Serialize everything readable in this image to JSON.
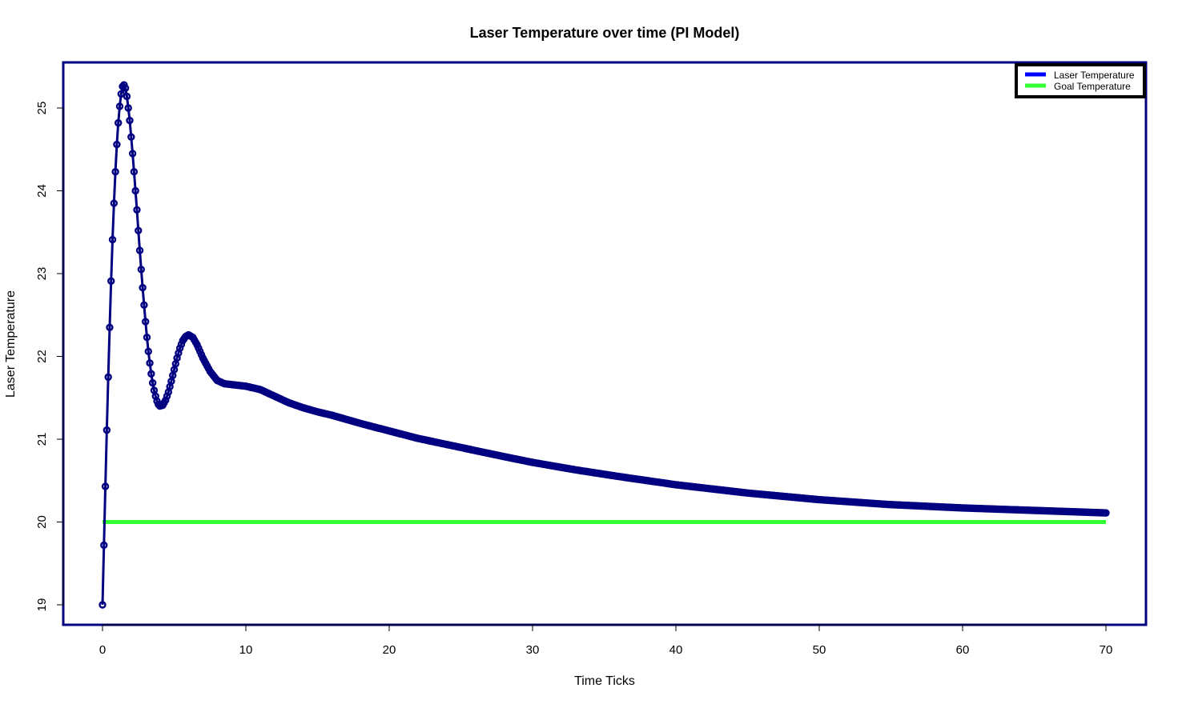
{
  "chart_data": {
    "type": "line",
    "title": "Laser Temperature over time (PI Model)",
    "xlabel": "Time Ticks",
    "ylabel": "Laser Temperature",
    "xlim": [
      0,
      70
    ],
    "ylim": [
      19,
      25.3
    ],
    "xticks": [
      0,
      10,
      20,
      30,
      40,
      50,
      60,
      70
    ],
    "yticks": [
      19,
      20,
      21,
      22,
      23,
      24,
      25
    ],
    "grid": false,
    "legend_position": "top-right",
    "legend": [
      {
        "label": "Laser Temperature",
        "color": "#0000ff"
      },
      {
        "label": "Goal Temperature",
        "color": "#33ff33"
      }
    ],
    "series": [
      {
        "name": "Laser Temperature",
        "color": "#000080",
        "marker": "circle",
        "x": [
          0,
          0.1,
          0.2,
          0.3,
          0.4,
          0.5,
          0.6,
          0.7,
          0.8,
          0.9,
          1.0,
          1.1,
          1.2,
          1.3,
          1.4,
          1.5,
          1.6,
          1.7,
          1.8,
          1.9,
          2.0,
          2.1,
          2.2,
          2.3,
          2.4,
          2.5,
          2.6,
          2.7,
          2.8,
          2.9,
          3.0,
          3.1,
          3.2,
          3.3,
          3.4,
          3.5,
          3.6,
          3.7,
          3.8,
          3.9,
          4.0,
          4.2,
          4.4,
          4.6,
          4.8,
          5.0,
          5.2,
          5.4,
          5.6,
          5.8,
          6.0,
          6.3,
          6.6,
          7.0,
          7.5,
          8.0,
          8.5,
          9.0,
          9.5,
          10,
          10.5,
          11,
          11.5,
          12,
          13,
          14,
          15,
          16,
          18,
          20,
          22,
          25,
          28,
          30,
          33,
          36,
          40,
          45,
          50,
          55,
          60,
          65,
          70
        ],
        "y": [
          19.0,
          19.72,
          20.43,
          21.11,
          21.75,
          22.35,
          22.91,
          23.41,
          23.85,
          24.23,
          24.56,
          24.82,
          25.02,
          25.17,
          25.26,
          25.28,
          25.24,
          25.14,
          25.0,
          24.85,
          24.65,
          24.45,
          24.23,
          24.0,
          23.77,
          23.52,
          23.28,
          23.05,
          22.83,
          22.62,
          22.42,
          22.23,
          22.06,
          21.92,
          21.79,
          21.68,
          21.59,
          21.52,
          21.46,
          21.42,
          21.4,
          21.41,
          21.47,
          21.57,
          21.7,
          21.84,
          21.98,
          22.1,
          22.19,
          22.24,
          22.26,
          22.23,
          22.14,
          21.98,
          21.82,
          21.71,
          21.67,
          21.66,
          21.65,
          21.64,
          21.62,
          21.6,
          21.56,
          21.52,
          21.44,
          21.38,
          21.33,
          21.29,
          21.19,
          21.1,
          21.01,
          20.9,
          20.79,
          20.72,
          20.63,
          20.55,
          20.45,
          20.35,
          20.27,
          20.21,
          20.17,
          20.14,
          20.11
        ]
      },
      {
        "name": "Goal Temperature",
        "color": "#33ff33",
        "x": [
          0,
          70
        ],
        "y": [
          20,
          20
        ]
      }
    ]
  }
}
